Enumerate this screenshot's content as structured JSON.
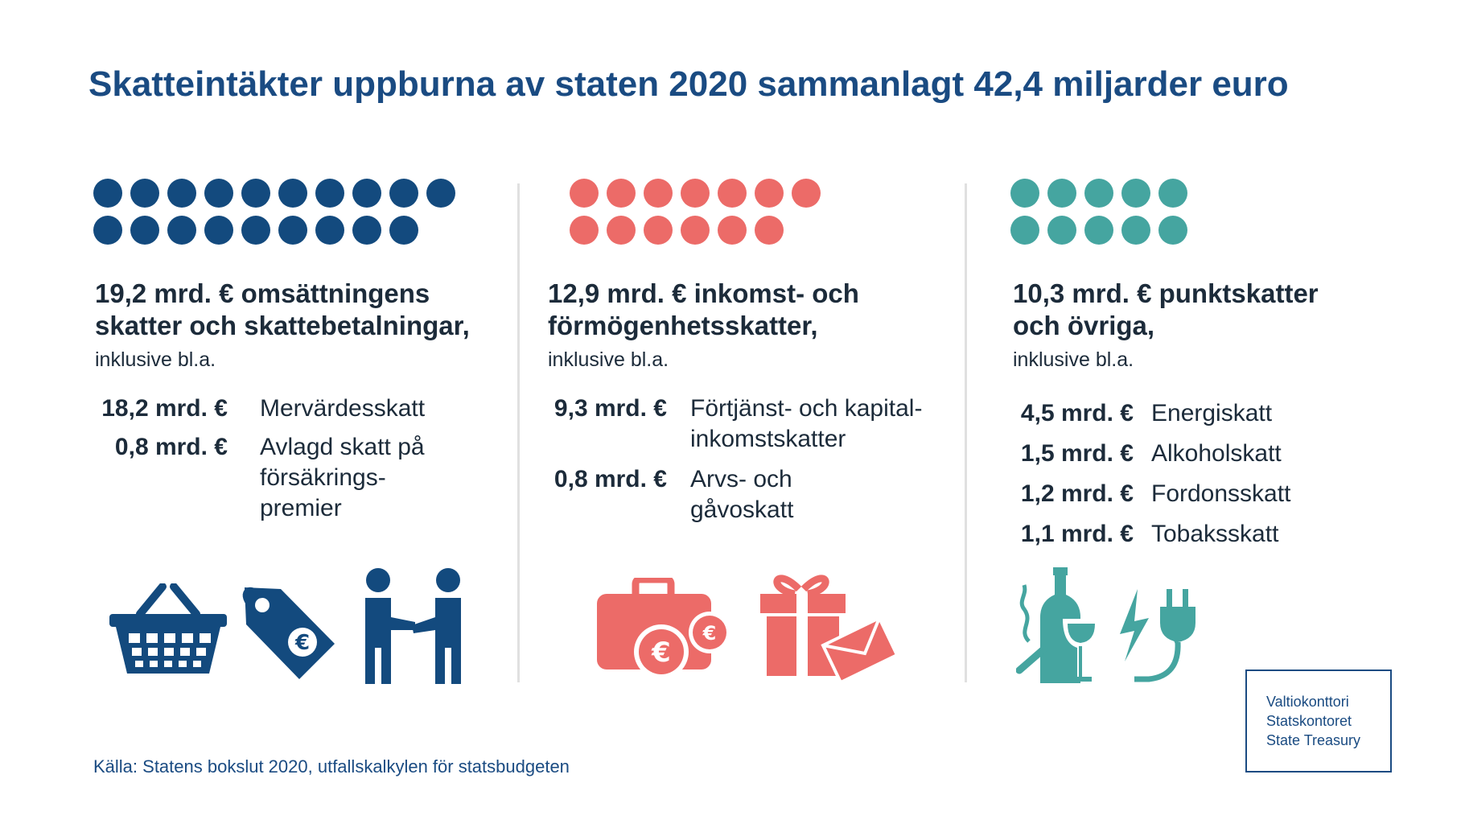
{
  "title": "Skatteintäkter uppburna av staten 2020 sammanlagt 42,4 miljarder euro",
  "source": "Källa: Statens bokslut 2020, utfallskalkylen för statsbudgeten",
  "logo": {
    "line1": "Valtiokonttori",
    "line2": "Statskontoret",
    "line3": "State Treasury"
  },
  "colors": {
    "navy": "#134a7e",
    "coral": "#ec6b68",
    "teal": "#45a5a0",
    "title": "#1a4b82"
  },
  "chart_data": {
    "type": "dot-infographic",
    "title": "Skatteintäkter uppburna av staten 2020 sammanlagt 42,4 miljarder euro",
    "unit_note": "one dot ≈ 1 mrd. €",
    "total": 42.4,
    "categories": [
      {
        "value": 19.2,
        "heading": "19,2 mrd. € omsättningens skatter och skattebetalningar,",
        "dots": 19,
        "color": "#134a7e",
        "inclusive": "inklusive bl.a.",
        "items": [
          {
            "amount": "18,2 mrd. €",
            "value": 18.2,
            "label": "Mervärdesskatt"
          },
          {
            "amount": "0,8 mrd. €",
            "value": 0.8,
            "label": "Avlagd skatt på\nförsäkrings-\npremier"
          }
        ],
        "icons": [
          "shopping-basket-icon",
          "price-tag-euro-icon",
          "handshake-people-icon"
        ]
      },
      {
        "value": 12.9,
        "heading": "12,9 mrd. € inkomst- och förmögenhetsskatter,",
        "dots": 13,
        "color": "#ec6b68",
        "inclusive": "inklusive bl.a.",
        "items": [
          {
            "amount": "9,3 mrd. €",
            "value": 9.3,
            "label": "Förtjänst- och kapital-\ninkomstskatter"
          },
          {
            "amount": "0,8 mrd. €",
            "value": 0.8,
            "label": "Arvs- och\ngåvoskatt"
          }
        ],
        "icons": [
          "briefcase-euro-icon",
          "gift-envelope-icon"
        ]
      },
      {
        "value": 10.3,
        "heading": "10,3 mrd. € punktskatter och övriga,",
        "dots": 10,
        "color": "#45a5a0",
        "inclusive": "inklusive bl.a.",
        "items": [
          {
            "amount": "4,5 mrd. €",
            "value": 4.5,
            "label": "Energiskatt"
          },
          {
            "amount": "1,5 mrd. €",
            "value": 1.5,
            "label": "Alkoholskatt"
          },
          {
            "amount": "1,2 mrd. €",
            "value": 1.2,
            "label": "Fordonsskatt"
          },
          {
            "amount": "1,1 mrd. €",
            "value": 1.1,
            "label": "Tobaksskatt"
          }
        ],
        "icons": [
          "bottle-glass-cigarette-icon",
          "electric-plug-icon"
        ]
      }
    ]
  }
}
